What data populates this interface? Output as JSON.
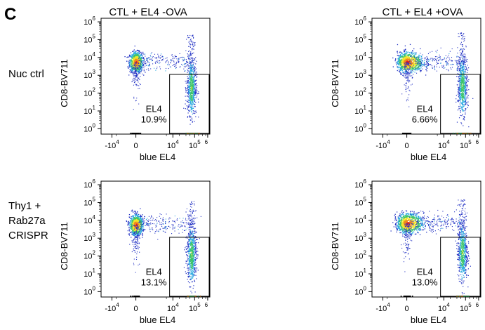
{
  "figure": {
    "panel_label": "C",
    "column_titles": [
      "CTL + EL4 -OVA",
      "CTL + EL4 +OVA"
    ],
    "row_labels": [
      [
        "Nuc ctrl"
      ],
      [
        "Thy1 +",
        "Rab27a",
        "CRISPR"
      ]
    ]
  },
  "chart_data": {
    "type": "scatter",
    "subtype": "flow-cytometry density plot grid",
    "xlabel": "blue EL4",
    "ylabel": "CD8-BV711",
    "x_scale": "biexponential",
    "y_scale": "log",
    "x_ticks": [
      {
        "base": "-10",
        "exp": "4",
        "value": -10000
      },
      {
        "base": "0",
        "exp": "",
        "value": 0
      },
      {
        "base": "10",
        "exp": "4",
        "value": 10000
      },
      {
        "base": "10",
        "exp": "5",
        "value": 100000
      },
      {
        "base": "",
        "exp": "6",
        "value": 1000000
      }
    ],
    "y_ticks": [
      {
        "base": "10",
        "exp": "0",
        "value": 1
      },
      {
        "base": "10",
        "exp": "1",
        "value": 10
      },
      {
        "base": "10",
        "exp": "2",
        "value": 100
      },
      {
        "base": "10",
        "exp": "3",
        "value": 1000
      },
      {
        "base": "10",
        "exp": "4",
        "value": 10000
      },
      {
        "base": "10",
        "exp": "5",
        "value": 100000
      },
      {
        "base": "10",
        "exp": "6",
        "value": 1000000
      }
    ],
    "gate_label": "EL4",
    "density_colors": [
      "#2433c4",
      "#27a9e0",
      "#3cc46a",
      "#f2e52a",
      "#f08a1e",
      "#e21d1d"
    ],
    "panels": [
      {
        "row": 0,
        "col": 0,
        "condition": "CTL + EL4 -OVA",
        "sample": "Nuc ctrl",
        "gate_percent": "10.9%",
        "populations": [
          {
            "name": "CTL",
            "x_center": 0,
            "log10_y_center": 3.75,
            "spread": "dense"
          },
          {
            "name": "EL4",
            "x_center": 70000,
            "log10_y_center": 2.3,
            "spread": "vertical"
          }
        ]
      },
      {
        "row": 0,
        "col": 1,
        "condition": "CTL + EL4 +OVA",
        "sample": "Nuc ctrl",
        "gate_percent": "6.66%",
        "populations": [
          {
            "name": "CTL",
            "x_center": 0,
            "log10_y_center": 3.75,
            "spread": "dense-wide"
          },
          {
            "name": "EL4",
            "x_center": 70000,
            "log10_y_center": 2.4,
            "spread": "vertical"
          }
        ]
      },
      {
        "row": 1,
        "col": 0,
        "condition": "CTL + EL4 -OVA",
        "sample": "Thy1 + Rab27a CRISPR",
        "gate_percent": "13.1%",
        "populations": [
          {
            "name": "CTL",
            "x_center": 0,
            "log10_y_center": 3.75,
            "spread": "dense"
          },
          {
            "name": "EL4",
            "x_center": 70000,
            "log10_y_center": 2.1,
            "spread": "vertical"
          }
        ]
      },
      {
        "row": 1,
        "col": 1,
        "condition": "CTL + EL4 +OVA",
        "sample": "Thy1 + Rab27a CRISPR",
        "gate_percent": "13.0%",
        "populations": [
          {
            "name": "CTL",
            "x_center": 0,
            "log10_y_center": 3.85,
            "spread": "dense-wide"
          },
          {
            "name": "EL4",
            "x_center": 70000,
            "log10_y_center": 2.2,
            "spread": "vertical"
          }
        ]
      }
    ]
  }
}
